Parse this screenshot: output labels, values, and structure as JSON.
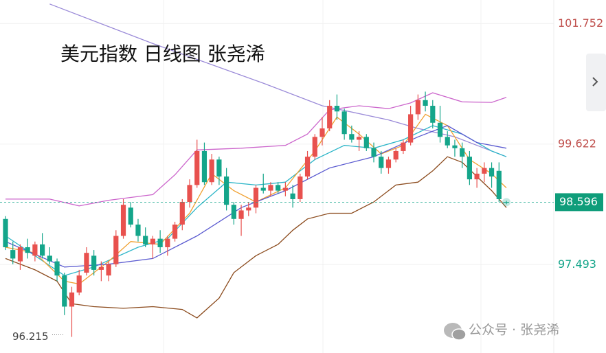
{
  "chart_data": {
    "type": "candlestick",
    "title": "美元指数 日线图 张尧浠",
    "open": [
      98.3,
      97.75,
      97.55,
      97.8,
      97.65,
      97.85,
      97.65,
      97.55,
      97.3,
      96.75,
      97.0,
      97.35,
      97.65,
      97.4,
      97.3,
      97.5,
      98.0,
      98.5,
      98.2,
      98.0,
      97.85,
      97.95,
      97.8,
      97.95,
      98.2,
      98.6,
      98.9,
      99.5,
      98.95,
      99.35,
      99.05,
      98.55,
      98.3,
      98.45,
      98.5,
      98.85,
      98.8,
      98.9,
      98.8,
      98.75,
      98.65,
      99.05,
      99.4,
      99.75,
      99.9,
      100.3,
      100.2,
      99.8,
      99.7,
      99.75,
      99.55,
      99.4,
      99.2,
      99.35,
      99.5,
      99.65,
      100.15,
      100.4,
      100.3,
      100.0,
      99.75,
      99.6,
      99.55,
      99.4,
      99.0,
      99.1,
      99.2,
      99.15,
      98.6
    ],
    "high": [
      98.35,
      97.9,
      97.85,
      97.95,
      97.9,
      98.05,
      97.8,
      97.6,
      97.35,
      97.1,
      97.4,
      97.8,
      97.75,
      97.55,
      97.55,
      98.1,
      98.65,
      98.6,
      98.3,
      98.15,
      98.0,
      98.1,
      98.0,
      98.25,
      98.65,
      99.0,
      99.7,
      99.65,
      99.45,
      99.4,
      99.2,
      98.6,
      98.55,
      98.6,
      98.9,
      99.1,
      98.95,
      98.95,
      98.95,
      98.9,
      99.1,
      99.5,
      99.8,
      100.1,
      100.4,
      100.5,
      100.25,
      99.95,
      99.85,
      99.8,
      99.65,
      99.5,
      99.4,
      99.55,
      99.7,
      100.3,
      100.5,
      100.55,
      100.4,
      100.3,
      99.85,
      99.7,
      99.65,
      99.5,
      99.2,
      99.3,
      99.3,
      99.3,
      98.62
    ],
    "low": [
      97.75,
      97.5,
      97.4,
      97.6,
      97.55,
      97.6,
      97.5,
      97.2,
      96.6,
      96.215,
      96.95,
      97.3,
      97.3,
      97.2,
      97.2,
      97.45,
      97.95,
      98.15,
      97.9,
      97.8,
      97.6,
      97.7,
      97.65,
      97.9,
      98.1,
      98.5,
      98.85,
      98.9,
      98.9,
      98.9,
      98.45,
      98.2,
      98.0,
      98.35,
      98.4,
      98.75,
      98.7,
      98.75,
      98.7,
      98.5,
      98.6,
      99.0,
      99.35,
      99.6,
      99.85,
      100.05,
      99.7,
      99.65,
      99.5,
      99.5,
      99.3,
      99.1,
      99.1,
      99.3,
      99.45,
      99.6,
      100.05,
      100.2,
      99.9,
      99.65,
      99.55,
      99.4,
      99.2,
      98.9,
      98.85,
      98.95,
      98.85,
      98.6,
      98.56
    ],
    "close": [
      97.8,
      97.6,
      97.8,
      97.7,
      97.85,
      97.65,
      97.55,
      97.3,
      96.75,
      97.0,
      97.3,
      97.7,
      97.4,
      97.45,
      97.5,
      98.0,
      98.55,
      98.2,
      98.0,
      97.85,
      97.95,
      97.8,
      97.95,
      98.2,
      98.6,
      98.9,
      99.5,
      98.95,
      99.35,
      99.05,
      98.55,
      98.3,
      98.45,
      98.5,
      98.85,
      98.8,
      98.9,
      98.8,
      98.85,
      98.65,
      99.05,
      99.4,
      99.75,
      99.9,
      100.3,
      100.2,
      99.8,
      99.7,
      99.75,
      99.55,
      99.4,
      99.2,
      99.35,
      99.5,
      99.65,
      100.15,
      100.4,
      100.3,
      100.0,
      99.75,
      99.6,
      99.55,
      99.4,
      99.0,
      99.1,
      99.2,
      99.05,
      98.65,
      98.596
    ],
    "up_color": "#e8514e",
    "down_color": "#14a58a",
    "lines": [
      {
        "color": "#cc66cc",
        "x": [
          0,
          6,
          10,
          14,
          20,
          23,
          26,
          32,
          38,
          41,
          44,
          48,
          52,
          55,
          58,
          62,
          66,
          68
        ],
        "values": [
          98.65,
          98.65,
          98.53,
          98.63,
          98.73,
          99.08,
          99.52,
          99.55,
          99.6,
          99.8,
          100.23,
          100.3,
          100.25,
          100.35,
          100.53,
          100.37,
          100.36,
          100.45
        ]
      },
      {
        "color": "#8b4a1c",
        "x": [
          0,
          4,
          7,
          9,
          12,
          16,
          20,
          24,
          26,
          29,
          31,
          34,
          37,
          39,
          41,
          44,
          47,
          50,
          53,
          56,
          58,
          60,
          62,
          64,
          66,
          68
        ],
        "values": [
          97.6,
          97.4,
          97.2,
          96.8,
          96.75,
          96.72,
          96.75,
          96.7,
          96.55,
          96.9,
          97.35,
          97.65,
          97.85,
          98.1,
          98.3,
          98.4,
          98.4,
          98.6,
          98.9,
          98.95,
          99.15,
          99.4,
          99.3,
          99.05,
          98.8,
          98.5
        ]
      },
      {
        "color": "#9a8ad8",
        "x": [
          6,
          20,
          35,
          43,
          52,
          56,
          61,
          68
        ],
        "values": [
          102.1,
          101.4,
          100.7,
          100.3,
          100.05,
          99.9,
          99.75,
          99.4
        ]
      },
      {
        "color": "#2bb5c8",
        "x": [
          0,
          8,
          12,
          18,
          22,
          26,
          30,
          34,
          38,
          42,
          46,
          50,
          54,
          58,
          62,
          66,
          68
        ],
        "values": [
          98.0,
          97.3,
          97.45,
          97.8,
          97.95,
          98.5,
          98.95,
          98.9,
          98.95,
          99.35,
          99.6,
          99.55,
          99.7,
          99.95,
          99.8,
          99.5,
          99.4
        ]
      },
      {
        "color": "#f0a030",
        "x": [
          0,
          4,
          8,
          10,
          14,
          17,
          21,
          25,
          28,
          31,
          34,
          38,
          42,
          45,
          48,
          51,
          54,
          57,
          60,
          63,
          66,
          68
        ],
        "values": [
          97.8,
          97.7,
          97.2,
          97.15,
          97.55,
          97.9,
          97.85,
          98.4,
          99.1,
          98.8,
          98.6,
          98.85,
          99.5,
          100.1,
          99.8,
          99.45,
          99.6,
          100.15,
          99.95,
          99.35,
          99.1,
          98.85
        ]
      },
      {
        "color": "#5a5ad0",
        "x": [
          0,
          8,
          14,
          20,
          26,
          32,
          38,
          44,
          50,
          56,
          60,
          64,
          68
        ],
        "values": [
          97.9,
          97.45,
          97.5,
          97.6,
          98.0,
          98.5,
          98.8,
          99.2,
          99.4,
          99.75,
          99.95,
          99.65,
          99.55
        ]
      }
    ],
    "ylim": [
      95.93,
      102.17
    ],
    "yticks": [
      101.752,
      99.622,
      97.493
    ],
    "last_price": 98.596,
    "low_marker": 96.215,
    "grid": true
  },
  "watermark": "公众号 · 张尧浠"
}
